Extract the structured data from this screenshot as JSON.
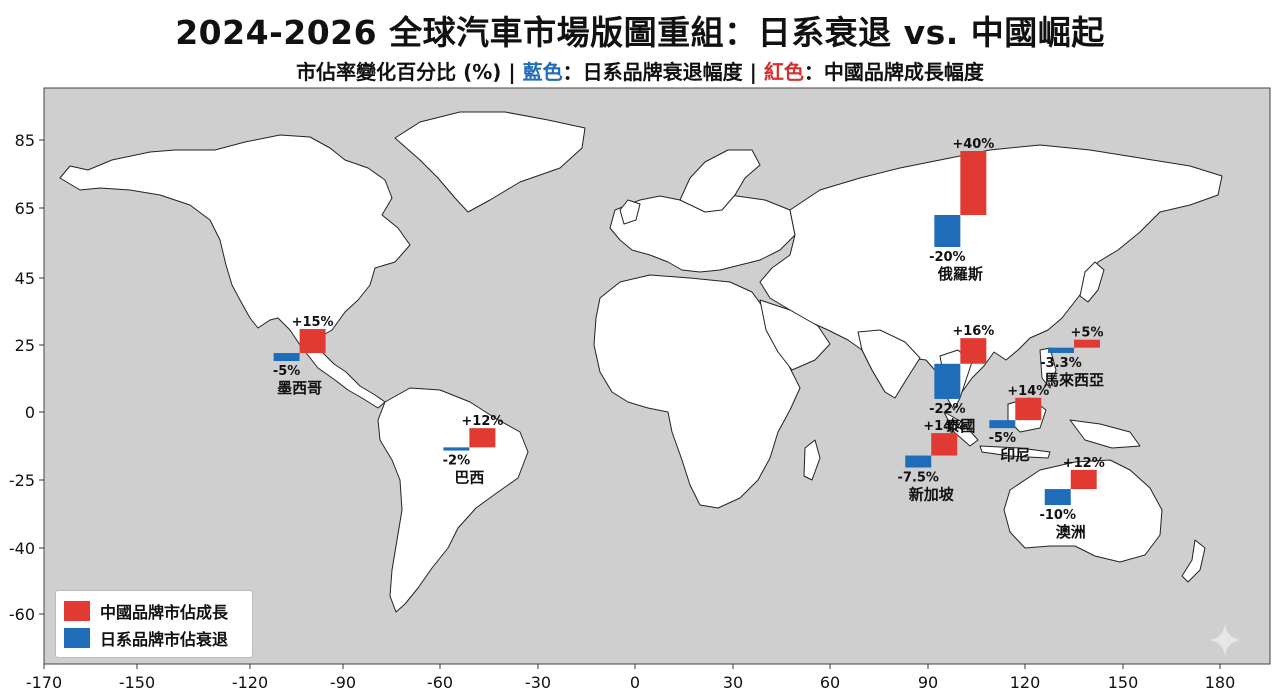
{
  "title": "2024-2026 全球汽車市場版圖重組：日系衰退 vs. 中國崛起",
  "subtitle": {
    "prefix": "市佔率變化百分比 (%) | ",
    "blue_word": "藍色",
    "blue_desc": "：日系品牌衰退幅度 | ",
    "red_word": "紅色",
    "red_desc": "：中國品牌成長幅度"
  },
  "colors": {
    "china": "#e03a33",
    "japan": "#1f6db8",
    "ocean": "#cfcfcf",
    "land": "#ffffff",
    "border": "#222222"
  },
  "axes": {
    "lon_ticks": [
      -170,
      -150,
      -120,
      -90,
      -60,
      -30,
      0,
      30,
      60,
      90,
      120,
      150,
      180
    ],
    "lat_ticks": [
      85,
      65,
      45,
      25,
      0,
      -25,
      -40,
      -60
    ]
  },
  "legend": {
    "china_label": "中國品牌市佔成長",
    "japan_label": "日系品牌市佔衰退"
  },
  "markets": [
    {
      "name": "墨西哥",
      "lon": -104,
      "lat": 22,
      "china": 15,
      "japan": -5,
      "china_label": "+15%",
      "japan_label": "-5%"
    },
    {
      "name": "巴西",
      "lon": -51,
      "lat": -13,
      "china": 12,
      "japan": -2,
      "china_label": "+12%",
      "japan_label": "-2%"
    },
    {
      "name": "俄羅斯",
      "lon": 100,
      "lat": 63,
      "china": 40,
      "japan": -20,
      "china_label": "+40%",
      "japan_label": "-20%"
    },
    {
      "name": "泰國",
      "lon": 100,
      "lat": 18,
      "china": 16,
      "japan": -22,
      "china_label": "+16%",
      "japan_label": "-22%"
    },
    {
      "name": "馬來西亞",
      "lon": 135,
      "lat": 24,
      "china": 5,
      "japan": -3.3,
      "china_label": "+5%",
      "japan_label": "-3.3%"
    },
    {
      "name": "印尼",
      "lon": 117,
      "lat": -3,
      "china": 14,
      "japan": -5,
      "china_label": "+14%",
      "japan_label": "-5%"
    },
    {
      "name": "新加坡",
      "lon": 91,
      "lat": -16,
      "china": 14,
      "japan": -7.5,
      "china_label": "+14%",
      "japan_label": "-7.5%"
    },
    {
      "name": "澳洲",
      "lon": 134,
      "lat": -27,
      "china": 12,
      "japan": -10,
      "china_label": "+12%",
      "japan_label": "-10%"
    }
  ]
}
